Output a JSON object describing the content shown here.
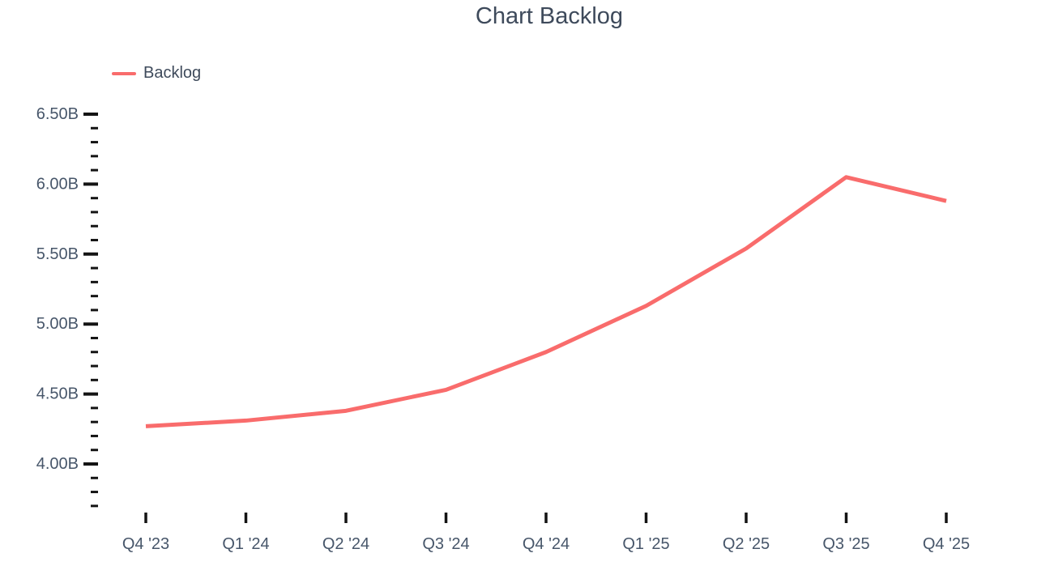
{
  "page": {
    "background": "#ffffff"
  },
  "chart_data": {
    "type": "line",
    "title": "Chart Backlog",
    "xlabel": "",
    "ylabel": "",
    "unit": "B",
    "categories": [
      "Q4 '23",
      "Q1 '24",
      "Q2 '24",
      "Q3 '24",
      "Q4 '24",
      "Q1 '25",
      "Q2 '25",
      "Q3 '25",
      "Q4 '25"
    ],
    "series": [
      {
        "name": "Backlog",
        "color": "#f96c6c",
        "values": [
          4.27,
          4.31,
          4.38,
          4.53,
          4.8,
          5.13,
          5.54,
          6.05,
          5.88
        ]
      }
    ],
    "legend": {
      "position": "top-left",
      "entries": [
        "Backlog"
      ]
    },
    "ylim": [
      3.7,
      6.5
    ],
    "y_major_step": 0.5,
    "y_minor_step": 0.1,
    "y_tick_labels": [
      "6.50B",
      "6.00B",
      "5.50B",
      "5.00B",
      "4.50B",
      "4.00B"
    ],
    "grid": false,
    "colors": {
      "tick": "#141414",
      "title_text": "#3e4a5b",
      "axis_text": "#47566a"
    }
  }
}
